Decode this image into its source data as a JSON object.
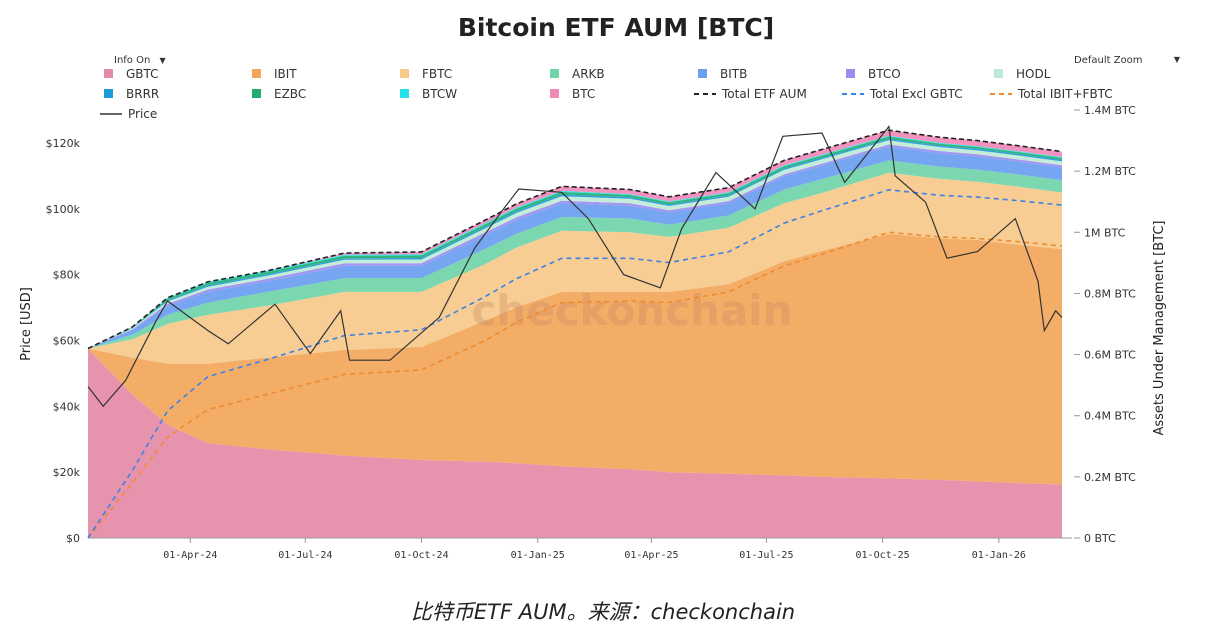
{
  "chart_data": {
    "type": "area",
    "title": "Bitcoin ETF AUM [BTC]",
    "ylabel_left": "Price [USD]",
    "ylabel_right": "Assets Under Management [BTC]",
    "y_left_ticks": [
      "$0",
      "$20k",
      "$40k",
      "$60k",
      "$80k",
      "$100k",
      "$120k"
    ],
    "y_left_lim": [
      0,
      130000
    ],
    "y_right_ticks": [
      "0 BTC",
      "0.2M BTC",
      "0.4M BTC",
      "0.6M BTC",
      "0.8M BTC",
      "1M BTC",
      "1.2M BTC",
      "1.4M BTC"
    ],
    "y_right_lim": [
      0,
      1400000
    ],
    "x_ticks": [
      "01-Apr-24",
      "01-Jul-24",
      "01-Oct-24",
      "01-Jan-25",
      "01-Apr-25",
      "01-Jul-25",
      "01-Oct-25",
      "01-Jan-26"
    ],
    "x_tick_dates": [
      "2024-04-01",
      "2024-07-01",
      "2024-10-01",
      "2025-01-01",
      "2025-04-01",
      "2025-07-01",
      "2025-10-01",
      "2026-01-01"
    ],
    "x_range": [
      "2024-01-11",
      "2026-02-20"
    ],
    "watermark": "checkonchain",
    "legend_position": "top",
    "legend": [
      {
        "name": "GBTC",
        "color": "#e58aa6",
        "kind": "area"
      },
      {
        "name": "IBIT",
        "color": "#f2a65a",
        "kind": "area"
      },
      {
        "name": "FBTC",
        "color": "#f6c98a",
        "kind": "area"
      },
      {
        "name": "ARKB",
        "color": "#6fd4a8",
        "kind": "area"
      },
      {
        "name": "BITB",
        "color": "#6a9ef0",
        "kind": "area"
      },
      {
        "name": "BTCO",
        "color": "#9b8df0",
        "kind": "area"
      },
      {
        "name": "HODL",
        "color": "#bfead8",
        "kind": "area"
      },
      {
        "name": "BRRR",
        "color": "#1f9ad6",
        "kind": "area"
      },
      {
        "name": "EZBC",
        "color": "#1fae70",
        "kind": "area"
      },
      {
        "name": "BTCW",
        "color": "#28e1e8",
        "kind": "area"
      },
      {
        "name": "BTC",
        "color": "#f08ab8",
        "kind": "area"
      },
      {
        "name": "Total ETF AUM",
        "color": "#222222",
        "kind": "dash"
      },
      {
        "name": "Total Excl GBTC",
        "color": "#3b82e8",
        "kind": "dash"
      },
      {
        "name": "Total IBIT+FBTC",
        "color": "#f08a2e",
        "kind": "dash"
      },
      {
        "name": "Price",
        "color": "#333333",
        "kind": "line"
      }
    ],
    "dates": [
      "2024-01-11",
      "2024-02-15",
      "2024-03-14",
      "2024-04-15",
      "2024-06-01",
      "2024-08-01",
      "2024-10-01",
      "2024-11-20",
      "2024-12-15",
      "2025-01-20",
      "2025-03-15",
      "2025-04-15",
      "2025-06-01",
      "2025-07-15",
      "2025-08-15",
      "2025-10-06",
      "2025-11-15",
      "2025-12-15",
      "2026-01-15",
      "2026-02-20"
    ],
    "series": [
      {
        "name": "GBTC",
        "values": [
          620000,
          470000,
          370000,
          310000,
          290000,
          270000,
          255000,
          250000,
          245000,
          235000,
          225000,
          215000,
          210000,
          205000,
          200000,
          195000,
          190000,
          185000,
          180000,
          175000
        ]
      },
      {
        "name": "IBIT",
        "values": [
          0,
          120000,
          200000,
          260000,
          300000,
          345000,
          370000,
          460000,
          510000,
          570000,
          580000,
          590000,
          620000,
          700000,
          740000,
          800000,
          790000,
          790000,
          780000,
          770000
        ]
      },
      {
        "name": "FBTC",
        "values": [
          0,
          60000,
          130000,
          160000,
          170000,
          190000,
          180000,
          185000,
          195000,
          200000,
          195000,
          180000,
          185000,
          190000,
          190000,
          200000,
          195000,
          190000,
          190000,
          185000
        ]
      },
      {
        "name": "ARKB",
        "values": [
          0,
          15000,
          30000,
          40000,
          45000,
          45000,
          45000,
          50000,
          45000,
          45000,
          45000,
          40000,
          40000,
          45000,
          45000,
          40000,
          40000,
          40000,
          40000,
          40000
        ]
      },
      {
        "name": "BITB",
        "values": [
          0,
          15000,
          30000,
          35000,
          35000,
          40000,
          40000,
          45000,
          45000,
          45000,
          42000,
          40000,
          40000,
          43000,
          44000,
          45000,
          44000,
          43000,
          42000,
          42000
        ]
      },
      {
        "name": "BTCO",
        "values": [
          0,
          3000,
          6000,
          8000,
          8000,
          9000,
          9000,
          9000,
          9000,
          8000,
          8000,
          7000,
          7000,
          7000,
          7000,
          7000,
          7000,
          7000,
          7000,
          7000
        ]
      },
      {
        "name": "HODL",
        "values": [
          0,
          3000,
          8000,
          9000,
          10000,
          11000,
          12000,
          13000,
          14000,
          15000,
          15000,
          14000,
          14000,
          14000,
          14000,
          14000,
          13000,
          13000,
          13000,
          13000
        ]
      },
      {
        "name": "BRRR",
        "values": [
          0,
          1000,
          4000,
          5000,
          5000,
          5000,
          5000,
          5000,
          6000,
          6000,
          5000,
          5000,
          5000,
          5000,
          5000,
          5000,
          5000,
          5000,
          5000,
          5000
        ]
      },
      {
        "name": "EZBC",
        "values": [
          0,
          2000,
          5000,
          7000,
          7000,
          8000,
          8000,
          8000,
          8000,
          8000,
          7000,
          7000,
          7000,
          7000,
          7000,
          7000,
          6000,
          6000,
          6000,
          6000
        ]
      },
      {
        "name": "BTCW",
        "values": [
          0,
          1000,
          3000,
          4000,
          4000,
          4000,
          4000,
          4000,
          4000,
          4000,
          3000,
          3000,
          3000,
          3000,
          3000,
          3000,
          3000,
          3000,
          3000,
          3000
        ]
      },
      {
        "name": "BTC",
        "values": [
          0,
          0,
          0,
          0,
          0,
          5000,
          8000,
          10000,
          12000,
          14000,
          15000,
          15000,
          15000,
          16000,
          17000,
          18000,
          18000,
          18000,
          18000,
          18000
        ]
      }
    ],
    "price": {
      "name": "Price",
      "dates": [
        "2024-01-11",
        "2024-01-23",
        "2024-02-10",
        "2024-03-05",
        "2024-03-14",
        "2024-04-15",
        "2024-05-01",
        "2024-06-07",
        "2024-07-05",
        "2024-07-29",
        "2024-08-05",
        "2024-09-06",
        "2024-10-15",
        "2024-11-12",
        "2024-12-05",
        "2024-12-17",
        "2025-01-20",
        "2025-02-10",
        "2025-03-10",
        "2025-04-08",
        "2025-04-25",
        "2025-05-22",
        "2025-06-22",
        "2025-07-14",
        "2025-08-14",
        "2025-09-01",
        "2025-10-06",
        "2025-10-11",
        "2025-11-04",
        "2025-11-21",
        "2025-12-15",
        "2026-01-14",
        "2026-02-01",
        "2026-02-06",
        "2026-02-15",
        "2026-02-20"
      ],
      "values": [
        46000,
        40000,
        48000,
        66000,
        72000,
        63000,
        59000,
        71000,
        56000,
        69000,
        54000,
        54000,
        67000,
        88000,
        100000,
        106000,
        105000,
        97000,
        80000,
        76000,
        94000,
        111000,
        100000,
        122000,
        123000,
        108000,
        125000,
        110000,
        102000,
        85000,
        87000,
        97000,
        78000,
        63000,
        69000,
        67000
      ]
    }
  },
  "controls": {
    "info_label": "Info On",
    "zoom_label": "Default Zoom",
    "dropdown_glyph": "▼"
  },
  "caption": "比特币ETF AUM。来源：checkonchain"
}
